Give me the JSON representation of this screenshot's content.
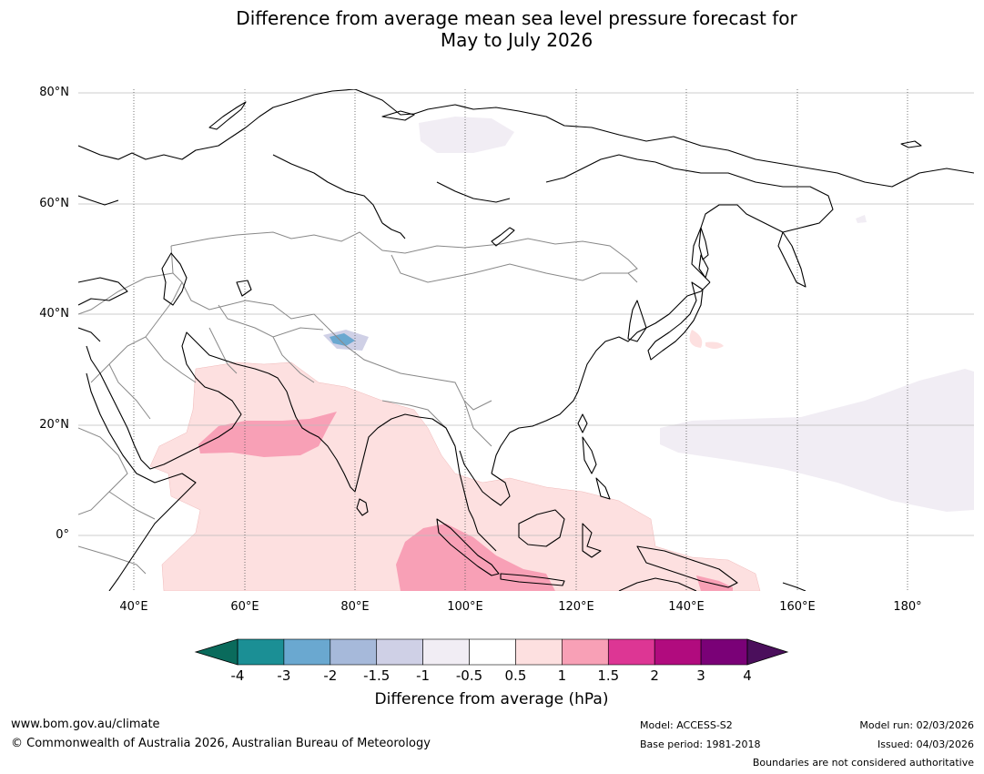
{
  "title_line1": "Difference from average mean sea level pressure forecast for",
  "title_line2": "May to July 2026",
  "lat_labels": [
    "80°N",
    "60°N",
    "40°N",
    "20°N",
    "0°"
  ],
  "lon_labels": [
    "40°E",
    "60°E",
    "80°E",
    "100°E",
    "120°E",
    "140°E",
    "160°E",
    "180°"
  ],
  "colorbar": {
    "ticks": [
      "-4",
      "-3",
      "-2",
      "-1.5",
      "-1",
      "-0.5",
      "0.5",
      "1",
      "1.5",
      "2",
      "3",
      "4"
    ],
    "colors": {
      "below_min": "#0a6b5c",
      "bins": [
        "#1b8f95",
        "#6aa8d0",
        "#a6b9da",
        "#cfd0e6",
        "#f1edf4",
        "#ffffff",
        "#fde0e0",
        "#f8a0b6",
        "#dd3694",
        "#b10b7e",
        "#7a0177"
      ],
      "above_max": "#4b0f5c"
    },
    "title": "Difference from average (hPa)"
  },
  "footer": {
    "url": "www.bom.gov.au/climate",
    "copyright": "© Commonwealth of Australia 2026, Australian Bureau of Meteorology",
    "model": "Model: ACCESS-S2",
    "base_period": "Base period: 1981-2018",
    "model_run": "Model run: 02/03/2026",
    "issued": "Issued: 04/03/2026",
    "disclaimer": "Boundaries are not considered authoritative"
  }
}
